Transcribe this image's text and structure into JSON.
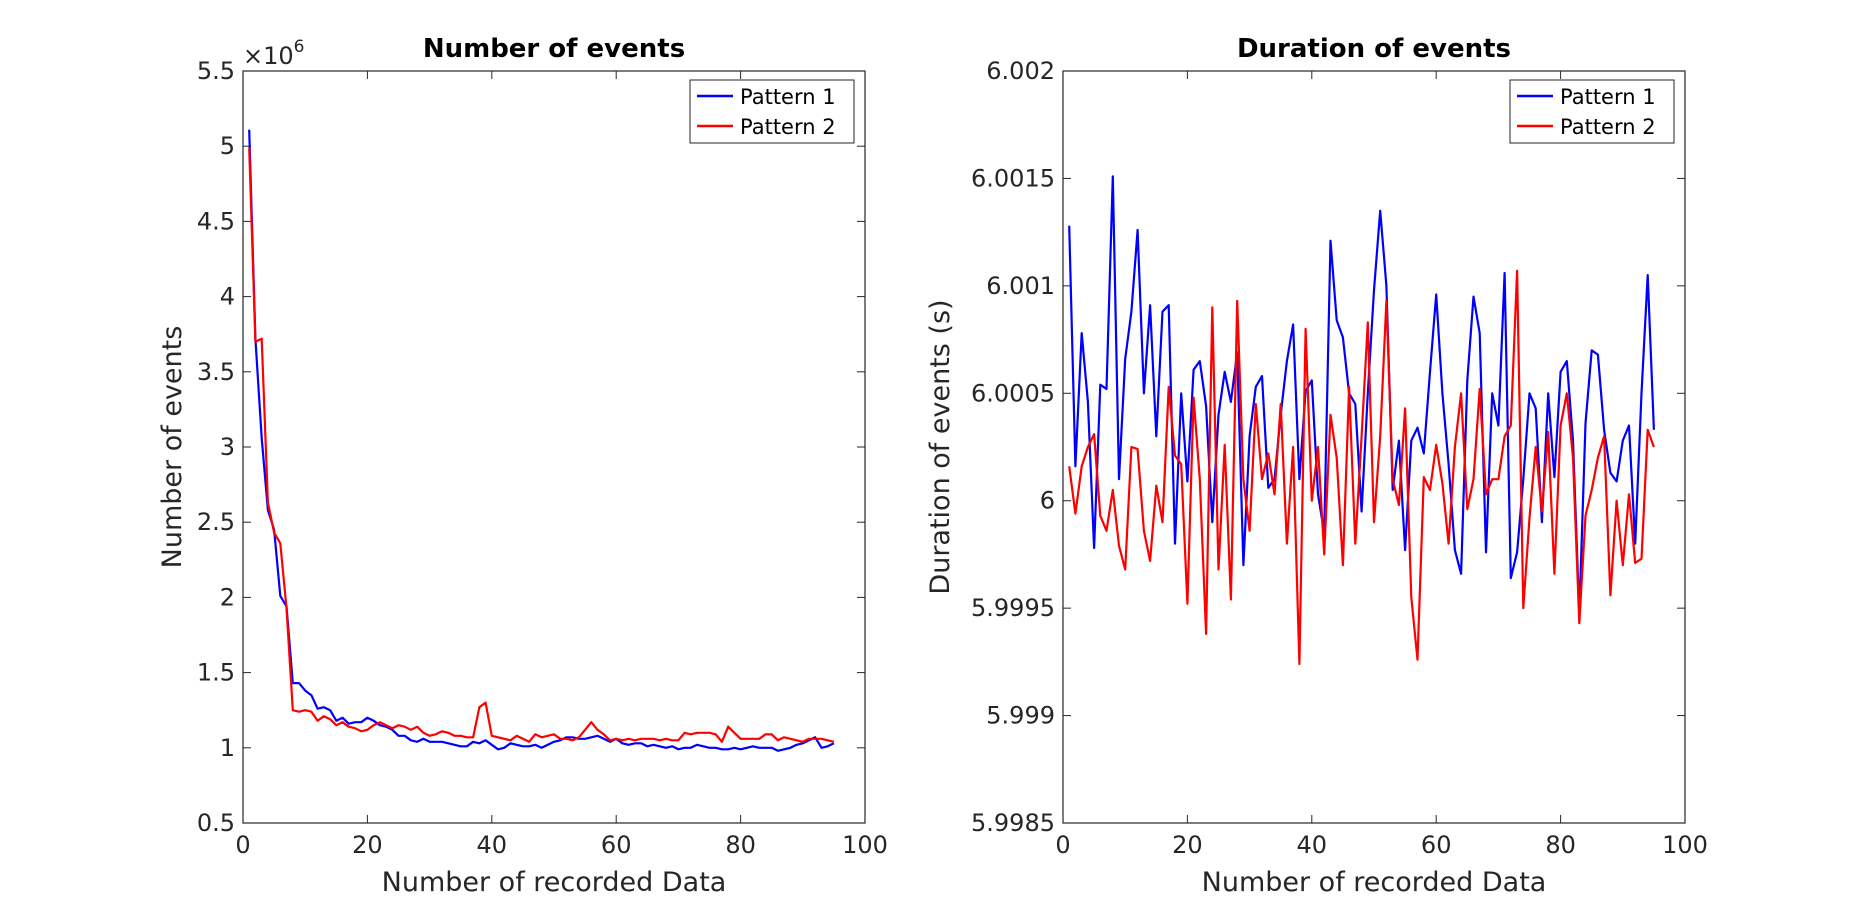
{
  "chart_data": [
    {
      "type": "line",
      "title": "Number of events",
      "xlabel": "Number of recorded Data",
      "ylabel": "Number of events",
      "exponent_label": "×10",
      "exponent_power": "6",
      "xlim": [
        0,
        100
      ],
      "ylim": [
        0.5,
        5.5
      ],
      "xticks": [
        0,
        20,
        40,
        60,
        80,
        100
      ],
      "xtick_labels": [
        "0",
        "20",
        "40",
        "60",
        "80",
        "100"
      ],
      "yticks": [
        0.5,
        1,
        1.5,
        2,
        2.5,
        3,
        3.5,
        4,
        4.5,
        5,
        5.5
      ],
      "ytick_labels": [
        "0.5",
        "1",
        "1.5",
        "2",
        "2.5",
        "3",
        "3.5",
        "4",
        "4.5",
        "5",
        "5.5"
      ],
      "grid": false,
      "legend_position": "top-right",
      "series": [
        {
          "name": "Pattern 1",
          "color": "#0000ff",
          "values": [
            5.11,
            3.72,
            3.06,
            2.58,
            2.45,
            2.01,
            1.94,
            1.43,
            1.43,
            1.38,
            1.35,
            1.26,
            1.27,
            1.25,
            1.18,
            1.2,
            1.16,
            1.17,
            1.17,
            1.2,
            1.18,
            1.15,
            1.14,
            1.12,
            1.08,
            1.08,
            1.05,
            1.04,
            1.06,
            1.04,
            1.04,
            1.04,
            1.03,
            1.02,
            1.01,
            1.01,
            1.04,
            1.03,
            1.05,
            1.02,
            0.99,
            1.0,
            1.03,
            1.02,
            1.01,
            1.01,
            1.02,
            1.0,
            1.02,
            1.04,
            1.05,
            1.07,
            1.07,
            1.06,
            1.06,
            1.07,
            1.08,
            1.06,
            1.04,
            1.06,
            1.03,
            1.02,
            1.03,
            1.03,
            1.01,
            1.02,
            1.01,
            1.0,
            1.01,
            0.99,
            1.0,
            1.0,
            1.02,
            1.01,
            1.0,
            1.0,
            0.99,
            0.99,
            1.0,
            0.99,
            1.0,
            1.01,
            1.0,
            1.0,
            1.0,
            0.98,
            0.99,
            1.0,
            1.02,
            1.03,
            1.05,
            1.07,
            1.0,
            1.01,
            1.03
          ]
        },
        {
          "name": "Pattern 2",
          "color": "#ff0000",
          "values": [
            4.99,
            3.7,
            3.72,
            2.63,
            2.43,
            2.36,
            1.93,
            1.25,
            1.24,
            1.25,
            1.24,
            1.18,
            1.21,
            1.19,
            1.15,
            1.17,
            1.14,
            1.13,
            1.11,
            1.12,
            1.15,
            1.17,
            1.15,
            1.13,
            1.15,
            1.14,
            1.12,
            1.14,
            1.1,
            1.08,
            1.09,
            1.11,
            1.1,
            1.08,
            1.08,
            1.07,
            1.07,
            1.27,
            1.3,
            1.08,
            1.07,
            1.06,
            1.05,
            1.08,
            1.06,
            1.04,
            1.09,
            1.07,
            1.08,
            1.09,
            1.06,
            1.06,
            1.05,
            1.07,
            1.12,
            1.17,
            1.12,
            1.09,
            1.05,
            1.06,
            1.05,
            1.06,
            1.05,
            1.06,
            1.06,
            1.06,
            1.05,
            1.06,
            1.05,
            1.05,
            1.1,
            1.09,
            1.1,
            1.1,
            1.1,
            1.09,
            1.04,
            1.14,
            1.1,
            1.06,
            1.06,
            1.06,
            1.06,
            1.09,
            1.09,
            1.05,
            1.07,
            1.06,
            1.05,
            1.04,
            1.06,
            1.06,
            1.06,
            1.05,
            1.04
          ]
        }
      ]
    },
    {
      "type": "line",
      "title": "Duration of events",
      "xlabel": "Number of recorded Data",
      "ylabel": "Duration of events (s)",
      "xlim": [
        0,
        100
      ],
      "ylim": [
        5.9985,
        6.002
      ],
      "xticks": [
        0,
        20,
        40,
        60,
        80,
        100
      ],
      "xtick_labels": [
        "0",
        "20",
        "40",
        "60",
        "80",
        "100"
      ],
      "yticks": [
        5.9985,
        5.999,
        5.9995,
        6.0,
        6.0005,
        6.001,
        6.0015,
        6.002
      ],
      "ytick_labels": [
        "5.9985",
        "5.999",
        "5.9995",
        "6",
        "6.0005",
        "6.001",
        "6.0015",
        "6.002"
      ],
      "grid": false,
      "legend_position": "top-right",
      "series": [
        {
          "name": "Pattern 1",
          "color": "#0000ff",
          "values": [
            6.00128,
            6.00016,
            6.00078,
            6.00046,
            5.99978,
            6.00054,
            6.00052,
            6.00151,
            6.0001,
            6.00066,
            6.00088,
            6.00126,
            6.0005,
            6.00091,
            6.0003,
            6.00088,
            6.00091,
            5.9998,
            6.0005,
            6.00009,
            6.00061,
            6.00065,
            6.00044,
            5.9999,
            6.0004,
            6.0006,
            6.00046,
            6.00069,
            5.9997,
            6.0003,
            6.00053,
            6.00058,
            6.00006,
            6.0001,
            6.0004,
            6.00065,
            6.00082,
            6.0001,
            6.00051,
            6.00056,
            6.00003,
            5.99985,
            6.00121,
            6.00084,
            6.00076,
            6.0005,
            6.00045,
            5.99995,
            6.0005,
            6.00098,
            6.00135,
            6.001,
            6.00005,
            6.00028,
            5.99977,
            6.00028,
            6.00034,
            6.00022,
            6.0006,
            6.00096,
            6.0005,
            6.00017,
            5.99977,
            5.99966,
            6.00056,
            6.00095,
            6.00078,
            5.99976,
            6.0005,
            6.00035,
            6.00106,
            5.99964,
            5.99976,
            6.0001,
            6.0005,
            6.00043,
            5.9999,
            6.0005,
            6.00011,
            6.0006,
            6.00065,
            6.00028,
            5.99947,
            6.00036,
            6.0007,
            6.00068,
            6.00033,
            6.00013,
            6.00009,
            6.00028,
            6.00035,
            5.9998,
            6.0005,
            6.00105,
            6.00033
          ]
        },
        {
          "name": "Pattern 2",
          "color": "#ff0000",
          "values": [
            6.00016,
            5.99994,
            6.00016,
            6.00025,
            6.00031,
            5.99993,
            5.99986,
            6.00005,
            5.99979,
            5.99968,
            6.00025,
            6.00024,
            5.99986,
            5.99972,
            6.00007,
            5.9999,
            6.00053,
            6.00021,
            6.00017,
            5.99952,
            6.00048,
            6.0001,
            5.99938,
            6.0009,
            5.99968,
            6.00026,
            5.99954,
            6.00093,
            6.0001,
            5.99986,
            6.00045,
            6.0001,
            6.00022,
            6.00003,
            6.00045,
            5.9998,
            6.00025,
            5.99924,
            6.0008,
            6.0,
            6.00025,
            5.99975,
            6.0004,
            6.0002,
            5.9997,
            6.00053,
            5.9998,
            6.0003,
            6.00083,
            5.9999,
            6.0003,
            6.00093,
            6.0001,
            5.99998,
            6.00043,
            5.99955,
            5.99926,
            6.00011,
            6.00005,
            6.00026,
            6.00008,
            5.9998,
            6.00025,
            6.0005,
            5.99996,
            6.0001,
            6.00052,
            6.00003,
            6.0001,
            6.0001,
            6.0003,
            6.00035,
            6.00107,
            5.9995,
            5.99992,
            6.00025,
            5.99995,
            6.00032,
            5.99966,
            6.00035,
            6.0005,
            6.0002,
            5.99943,
            5.99993,
            6.00005,
            6.0002,
            6.0003,
            5.99956,
            6.0,
            5.9997,
            6.00003,
            5.99971,
            5.99973,
            6.00033,
            6.00025
          ]
        }
      ]
    }
  ]
}
